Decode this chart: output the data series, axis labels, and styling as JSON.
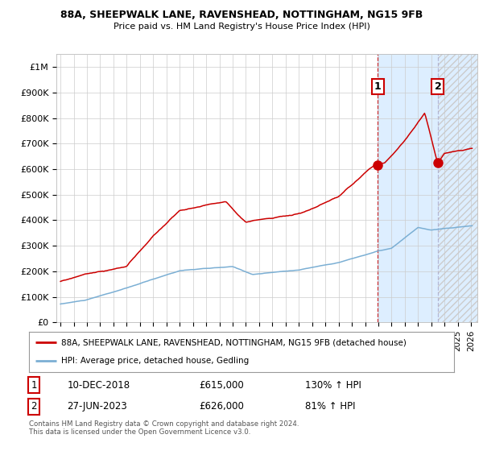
{
  "title_line1": "88A, SHEEPWALK LANE, RAVENSHEAD, NOTTINGHAM, NG15 9FB",
  "title_line2": "Price paid vs. HM Land Registry's House Price Index (HPI)",
  "ylabel_ticks": [
    "£0",
    "£100K",
    "£200K",
    "£300K",
    "£400K",
    "£500K",
    "£600K",
    "£700K",
    "£800K",
    "£900K",
    "£1M"
  ],
  "ytick_values": [
    0,
    100000,
    200000,
    300000,
    400000,
    500000,
    600000,
    700000,
    800000,
    900000,
    1000000
  ],
  "xlim_start": 1994.7,
  "xlim_end": 2026.5,
  "ylim": [
    0,
    1050000
  ],
  "hpi_color": "#7bafd4",
  "price_color": "#cc0000",
  "marker1_date": 2018.94,
  "marker1_price": 615000,
  "marker2_date": 2023.49,
  "marker2_price": 626000,
  "annotation1_label": "10-DEC-2018",
  "annotation1_price": "£615,000",
  "annotation1_hpi": "130% ↑ HPI",
  "annotation2_label": "27-JUN-2023",
  "annotation2_price": "£626,000",
  "annotation2_hpi": "81% ↑ HPI",
  "legend_line1": "88A, SHEEPWALK LANE, RAVENSHEAD, NOTTINGHAM, NG15 9FB (detached house)",
  "legend_line2": "HPI: Average price, detached house, Gedling",
  "footnote": "Contains HM Land Registry data © Crown copyright and database right 2024.\nThis data is licensed under the Open Government Licence v3.0.",
  "background_color": "#ffffff",
  "grid_color": "#cccccc",
  "shade_color": "#ddeeff"
}
